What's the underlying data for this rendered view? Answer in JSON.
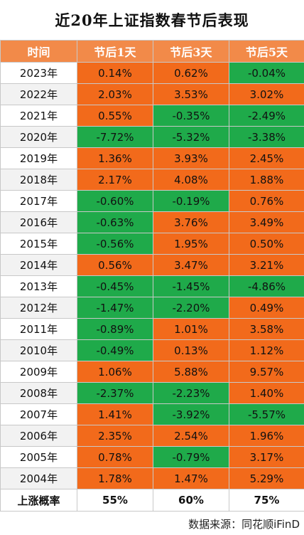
{
  "title": "近20年上证指数春节后表现",
  "headers": [
    "时间",
    "节后1天",
    "节后3天",
    "节后5天"
  ],
  "colors": {
    "header": "#f28a49",
    "up": "#f26a1b",
    "down": "#1faa4a"
  },
  "rows": [
    {
      "year": "2023年",
      "d1": "0.14%",
      "d3": "0.62%",
      "d5": "-0.04%"
    },
    {
      "year": "2022年",
      "d1": "2.03%",
      "d3": "3.53%",
      "d5": "3.02%"
    },
    {
      "year": "2021年",
      "d1": "0.55%",
      "d3": "-0.35%",
      "d5": "-2.49%"
    },
    {
      "year": "2020年",
      "d1": "-7.72%",
      "d3": "-5.32%",
      "d5": "-3.38%"
    },
    {
      "year": "2019年",
      "d1": "1.36%",
      "d3": "3.93%",
      "d5": "2.45%"
    },
    {
      "year": "2018年",
      "d1": "2.17%",
      "d3": "4.08%",
      "d5": "1.88%"
    },
    {
      "year": "2017年",
      "d1": "-0.60%",
      "d3": "-0.19%",
      "d5": "0.76%"
    },
    {
      "year": "2016年",
      "d1": "-0.63%",
      "d3": "3.76%",
      "d5": "3.49%"
    },
    {
      "year": "2015年",
      "d1": "-0.56%",
      "d3": "1.95%",
      "d5": "0.50%"
    },
    {
      "year": "2014年",
      "d1": "0.56%",
      "d3": "3.47%",
      "d5": "3.21%"
    },
    {
      "year": "2013年",
      "d1": "-0.45%",
      "d3": "-1.45%",
      "d5": "-4.86%"
    },
    {
      "year": "2012年",
      "d1": "-1.47%",
      "d3": "-2.20%",
      "d5": "0.49%"
    },
    {
      "year": "2011年",
      "d1": "-0.89%",
      "d3": "1.01%",
      "d5": "3.58%"
    },
    {
      "year": "2010年",
      "d1": "-0.49%",
      "d3": "0.13%",
      "d5": "1.12%"
    },
    {
      "year": "2009年",
      "d1": "1.06%",
      "d3": "5.88%",
      "d5": "9.57%"
    },
    {
      "year": "2008年",
      "d1": "-2.37%",
      "d3": "-2.23%",
      "d5": "1.40%"
    },
    {
      "year": "2007年",
      "d1": "1.41%",
      "d3": "-3.92%",
      "d5": "-5.57%"
    },
    {
      "year": "2006年",
      "d1": "2.35%",
      "d3": "2.54%",
      "d5": "1.96%"
    },
    {
      "year": "2005年",
      "d1": "0.78%",
      "d3": "-0.79%",
      "d5": "3.17%"
    },
    {
      "year": "2004年",
      "d1": "1.78%",
      "d3": "1.47%",
      "d5": "5.29%"
    }
  ],
  "summary": {
    "label": "上涨概率",
    "d1": "55%",
    "d3": "60%",
    "d5": "75%"
  },
  "source": "数据来源：同花顺iFinD"
}
